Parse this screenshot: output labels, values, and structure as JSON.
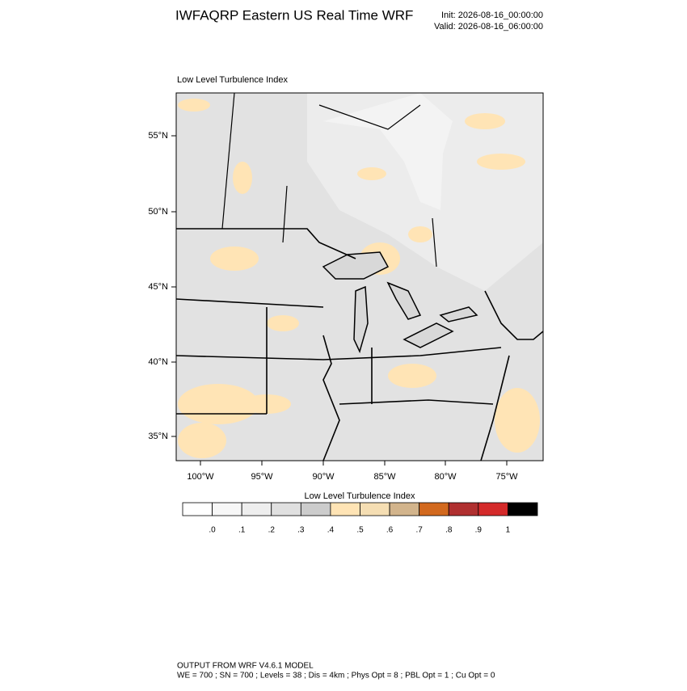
{
  "header": {
    "title": "IWFAQRP Eastern US Real Time WRF",
    "init": "Init: 2026-08-16_00:00:00",
    "valid": "Valid: 2026-08-16_06:00:00"
  },
  "map": {
    "subtitle": "Low Level Turbulence Index",
    "lat_labels": [
      "55°N",
      "50°N",
      "45°N",
      "40°N",
      "35°N"
    ],
    "lon_labels": [
      "100°W",
      "95°W",
      "90°W",
      "85°W",
      "80°W",
      "75°W"
    ]
  },
  "colorbar": {
    "title": "Low Level Turbulence Index",
    "colors": [
      "#ffffff",
      "#f7f7f7",
      "#eeeeee",
      "#e0e0e0",
      "#cccccc",
      "#ffe4b5",
      "#f5deb3",
      "#d2b48c",
      "#d2691e",
      "#b03030",
      "#d42a2a",
      "#000000"
    ],
    "labels": [
      ".0",
      ".1",
      ".2",
      ".3",
      ".4",
      ".5",
      ".6",
      ".7",
      ".8",
      ".9",
      "1"
    ]
  },
  "footer": {
    "line1": "OUTPUT FROM WRF V4.6.1 MODEL",
    "line2": "WE = 700 ; SN = 700 ; Levels = 38 ; Dis = 4km ; Phys Opt = 8 ; PBL Opt = 1 ; Cu Opt = 0"
  }
}
